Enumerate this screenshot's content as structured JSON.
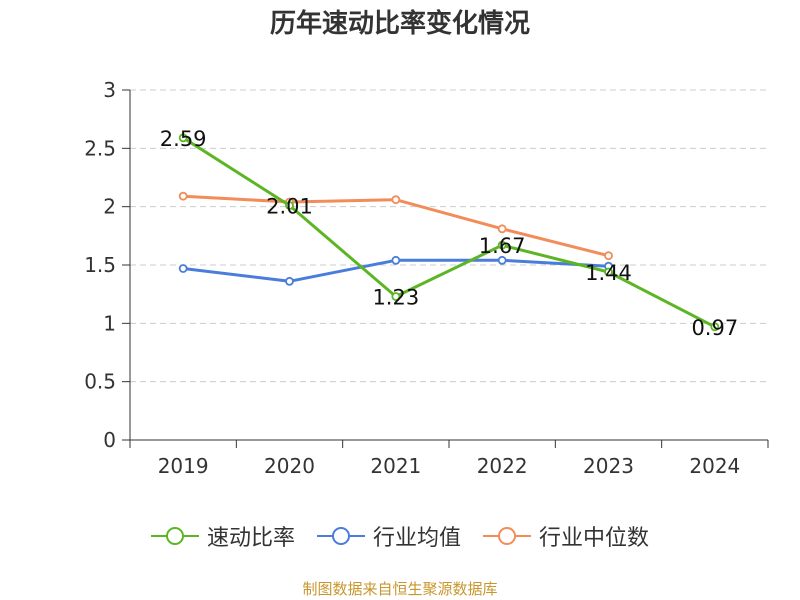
{
  "chart_data": {
    "type": "line",
    "title": "历年速动比率变化情况",
    "categories": [
      "2019",
      "2020",
      "2021",
      "2022",
      "2023",
      "2024"
    ],
    "ylim": [
      0,
      3
    ],
    "yticks": [
      "0",
      "0.5",
      "1",
      "1.5",
      "2",
      "2.5",
      "3"
    ],
    "grid": true,
    "legend_position": "bottom",
    "series": [
      {
        "name": "速动比率",
        "color": "#5cb624",
        "values": [
          2.59,
          2.01,
          1.23,
          1.67,
          1.44,
          0.97
        ],
        "labels": [
          "2.59",
          "2.01",
          "1.23",
          "1.67",
          "1.44",
          "0.97"
        ]
      },
      {
        "name": "行业均值",
        "color": "#4a7ddb",
        "values": [
          1.47,
          1.36,
          1.54,
          1.54,
          1.49,
          null
        ]
      },
      {
        "name": "行业中位数",
        "color": "#f28c5a",
        "values": [
          2.09,
          2.04,
          2.06,
          1.81,
          1.58,
          null
        ]
      }
    ]
  },
  "source": "制图数据来自恒生聚源数据库"
}
